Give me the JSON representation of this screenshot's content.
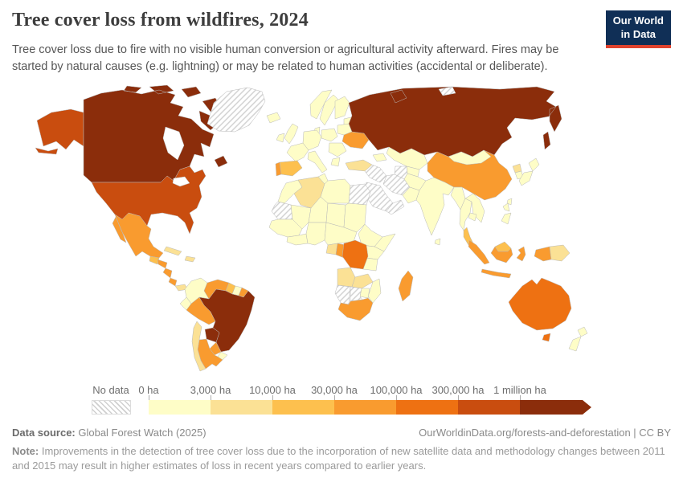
{
  "header": {
    "title": "Tree cover loss from wildfires, 2024",
    "subtitle": "Tree cover loss due to fire with no visible human conversion or agricultural activity afterward. Fires may be started by natural causes (e.g. lightning) or may be related to human activities (accidental or deliberate).",
    "logo_line1": "Our World",
    "logo_line2": "in Data",
    "logo_bg": "#102f56",
    "logo_accent": "#e0432e"
  },
  "chart_data": {
    "type": "heatmap",
    "subtype": "world-choropleth",
    "title": "Tree cover loss from wildfires, 2024",
    "unit": "ha",
    "legend_position": "bottom",
    "no_data_label": "No data",
    "no_data_style": "diagonal-hatch",
    "tick_labels": [
      "0 ha",
      "3,000 ha",
      "10,000 ha",
      "30,000 ha",
      "100,000 ha",
      "300,000 ha",
      "1 million ha"
    ],
    "bins": [
      {
        "range": "0 – 3,000 ha",
        "color": "#fefdc7"
      },
      {
        "range": "3,000 – 10,000 ha",
        "color": "#fbe195"
      },
      {
        "range": "10,000 – 30,000 ha",
        "color": "#fdc04e"
      },
      {
        "range": "30,000 – 100,000 ha",
        "color": "#f99b2f"
      },
      {
        "range": "100,000 – 300,000 ha",
        "color": "#ee7112"
      },
      {
        "range": "300,000 ha – 1 million ha",
        "color": "#c94d0f"
      },
      {
        "range": "1 million+ ha",
        "color": "#8b2d0b"
      }
    ],
    "countries": [
      {
        "id": "canada",
        "name": "Canada",
        "bin": 6
      },
      {
        "id": "usa",
        "name": "United States",
        "bin": 5
      },
      {
        "id": "greenland",
        "name": "Greenland",
        "no_data": true
      },
      {
        "id": "mexico",
        "name": "Mexico",
        "bin": 3
      },
      {
        "id": "guatemala",
        "name": "Guatemala",
        "bin": 2
      },
      {
        "id": "honduras",
        "name": "Honduras",
        "bin": 3
      },
      {
        "id": "nicaragua",
        "name": "Nicaragua",
        "bin": 3
      },
      {
        "id": "costa-rica",
        "name": "Costa Rica",
        "bin": 3
      },
      {
        "id": "panama",
        "name": "Panama",
        "bin": 1
      },
      {
        "id": "cuba",
        "name": "Cuba",
        "bin": 1
      },
      {
        "id": "hispaniola",
        "name": "Dominican Republic / Haiti",
        "bin": 1
      },
      {
        "id": "colombia",
        "name": "Colombia",
        "bin": 0
      },
      {
        "id": "venezuela",
        "name": "Venezuela",
        "bin": 3
      },
      {
        "id": "guyana",
        "name": "Guyana",
        "bin": 2
      },
      {
        "id": "suriname",
        "name": "Suriname",
        "bin": 0
      },
      {
        "id": "french-guiana",
        "name": "French Guiana",
        "bin": 3
      },
      {
        "id": "ecuador",
        "name": "Ecuador",
        "bin": 0
      },
      {
        "id": "peru",
        "name": "Peru",
        "bin": 3
      },
      {
        "id": "brazil",
        "name": "Brazil",
        "bin": 6
      },
      {
        "id": "bolivia",
        "name": "Bolivia",
        "bin": 6
      },
      {
        "id": "paraguay",
        "name": "Paraguay",
        "bin": 3
      },
      {
        "id": "uruguay",
        "name": "Uruguay",
        "bin": 0
      },
      {
        "id": "argentina",
        "name": "Argentina",
        "bin": 3
      },
      {
        "id": "chile",
        "name": "Chile",
        "bin": 1
      },
      {
        "id": "iceland",
        "name": "Iceland",
        "bin": 0
      },
      {
        "id": "uk",
        "name": "United Kingdom",
        "bin": 0
      },
      {
        "id": "ireland",
        "name": "Ireland",
        "bin": 0
      },
      {
        "id": "norway",
        "name": "Norway",
        "bin": 0
      },
      {
        "id": "sweden",
        "name": "Sweden",
        "bin": 0
      },
      {
        "id": "finland",
        "name": "Finland",
        "bin": 0
      },
      {
        "id": "baltics",
        "name": "Baltic states",
        "bin": 0
      },
      {
        "id": "denmark",
        "name": "Denmark",
        "bin": 0
      },
      {
        "id": "central-europe",
        "name": "Central Europe",
        "bin": 0
      },
      {
        "id": "poland",
        "name": "Poland",
        "bin": 0
      },
      {
        "id": "belarus",
        "name": "Belarus",
        "bin": 0
      },
      {
        "id": "france",
        "name": "France",
        "bin": 0
      },
      {
        "id": "spain",
        "name": "Spain",
        "bin": 2
      },
      {
        "id": "portugal",
        "name": "Portugal",
        "bin": 3
      },
      {
        "id": "italy",
        "name": "Italy",
        "bin": 0
      },
      {
        "id": "romania-balkans",
        "name": "Romania / Balkans",
        "bin": 0
      },
      {
        "id": "greece",
        "name": "Greece",
        "bin": 0
      },
      {
        "id": "ukraine",
        "name": "Ukraine",
        "bin": 3
      },
      {
        "id": "turkey",
        "name": "Turkey",
        "bin": 1
      },
      {
        "id": "caucasus",
        "name": "Caucasus",
        "bin": 0
      },
      {
        "id": "russia",
        "name": "Russia",
        "bin": 6
      },
      {
        "id": "kazakhstan",
        "name": "Kazakhstan",
        "bin": 0
      },
      {
        "id": "central-asia",
        "name": "Central Asia",
        "bin": 0
      },
      {
        "id": "turkmenistan",
        "name": "Turkmenistan",
        "no_data": true
      },
      {
        "id": "syria-iraq",
        "name": "Syria / Iraq",
        "no_data": true
      },
      {
        "id": "iran",
        "name": "Iran",
        "no_data": true
      },
      {
        "id": "saudi-arabia",
        "name": "Saudi Arabia",
        "no_data": true
      },
      {
        "id": "yemen-oman",
        "name": "Yemen / Oman",
        "no_data": true
      },
      {
        "id": "afghanistan",
        "name": "Afghanistan",
        "bin": 0
      },
      {
        "id": "pakistan",
        "name": "Pakistan",
        "bin": 0
      },
      {
        "id": "india",
        "name": "India",
        "bin": 0
      },
      {
        "id": "sri-lanka",
        "name": "Sri Lanka",
        "bin": 0
      },
      {
        "id": "china",
        "name": "China",
        "bin": 3
      },
      {
        "id": "mongolia",
        "name": "Mongolia",
        "bin": 0
      },
      {
        "id": "north-korea",
        "name": "North Korea",
        "bin": 1
      },
      {
        "id": "south-korea",
        "name": "South Korea",
        "bin": 0
      },
      {
        "id": "japan",
        "name": "Japan",
        "bin": 0
      },
      {
        "id": "taiwan",
        "name": "Taiwan",
        "bin": 0
      },
      {
        "id": "myanmar",
        "name": "Myanmar",
        "bin": 0
      },
      {
        "id": "thailand",
        "name": "Thailand",
        "bin": 0
      },
      {
        "id": "laos-vietnam",
        "name": "Laos / Vietnam",
        "bin": 0
      },
      {
        "id": "cambodia",
        "name": "Cambodia",
        "bin": 0
      },
      {
        "id": "malaysia",
        "name": "Malaysia",
        "bin": 2
      },
      {
        "id": "philippines",
        "name": "Philippines",
        "bin": 0
      },
      {
        "id": "indonesia",
        "name": "Indonesia",
        "bin": 3
      },
      {
        "id": "papua-new-guinea",
        "name": "Papua New Guinea",
        "bin": 1
      },
      {
        "id": "australia",
        "name": "Australia",
        "bin": 4
      },
      {
        "id": "new-zealand",
        "name": "New Zealand",
        "bin": 0
      },
      {
        "id": "svalbard",
        "name": "Svalbard",
        "no_data": true
      },
      {
        "id": "morocco",
        "name": "Morocco",
        "bin": 0
      },
      {
        "id": "w-sahara-mauritania",
        "name": "Western Sahara / Mauritania",
        "no_data": true
      },
      {
        "id": "algeria",
        "name": "Algeria",
        "bin": 1
      },
      {
        "id": "tunisia",
        "name": "Tunisia",
        "bin": 0
      },
      {
        "id": "libya",
        "name": "Libya",
        "bin": 0
      },
      {
        "id": "egypt",
        "name": "Egypt",
        "no_data": true
      },
      {
        "id": "mali",
        "name": "Mali",
        "bin": 0
      },
      {
        "id": "niger",
        "name": "Niger",
        "bin": 0
      },
      {
        "id": "chad",
        "name": "Chad",
        "bin": 0
      },
      {
        "id": "sudan",
        "name": "Sudan",
        "bin": 0
      },
      {
        "id": "senegal-guinea",
        "name": "Senegal / Guinea",
        "bin": 0
      },
      {
        "id": "ivory-ghana",
        "name": "Côte d'Ivoire / Ghana",
        "bin": 0
      },
      {
        "id": "nigeria",
        "name": "Nigeria",
        "bin": 0
      },
      {
        "id": "cameroon-car",
        "name": "Cameroon / Central African Republic",
        "bin": 0
      },
      {
        "id": "ethiopia",
        "name": "Ethiopia",
        "bin": 0
      },
      {
        "id": "somalia",
        "name": "Somalia",
        "bin": 0
      },
      {
        "id": "kenya",
        "name": "Kenya",
        "bin": 0
      },
      {
        "id": "tanzania",
        "name": "Tanzania",
        "bin": 0
      },
      {
        "id": "gabon",
        "name": "Gabon",
        "bin": 1
      },
      {
        "id": "congo",
        "name": "Congo",
        "bin": 3
      },
      {
        "id": "drc",
        "name": "Democratic Republic of Congo",
        "bin": 4
      },
      {
        "id": "angola",
        "name": "Angola",
        "bin": 1
      },
      {
        "id": "zambia",
        "name": "Zambia",
        "bin": 1
      },
      {
        "id": "mozambique",
        "name": "Mozambique",
        "bin": 0
      },
      {
        "id": "zimbabwe",
        "name": "Zimbabwe",
        "bin": 0
      },
      {
        "id": "namibia",
        "name": "Namibia",
        "no_data": true
      },
      {
        "id": "botswana",
        "name": "Botswana",
        "no_data": true
      },
      {
        "id": "south-africa",
        "name": "South Africa",
        "bin": 3
      },
      {
        "id": "madagascar",
        "name": "Madagascar",
        "bin": 3
      }
    ]
  },
  "legend_layout": {
    "bar_start": 185,
    "segment_width": 77,
    "arrow_extra": 12
  },
  "footer": {
    "source_label": "Data source:",
    "source_value": " Global Forest Watch (2025)",
    "link_text": "OurWorldinData.org/forests-and-deforestation | CC BY",
    "note_label": "Note:",
    "note_value": " Improvements in the detection of tree cover loss due to the incorporation of new satellite data and methodology changes between 2011 and 2015 may result in higher estimates of loss in recent years compared to earlier years."
  }
}
